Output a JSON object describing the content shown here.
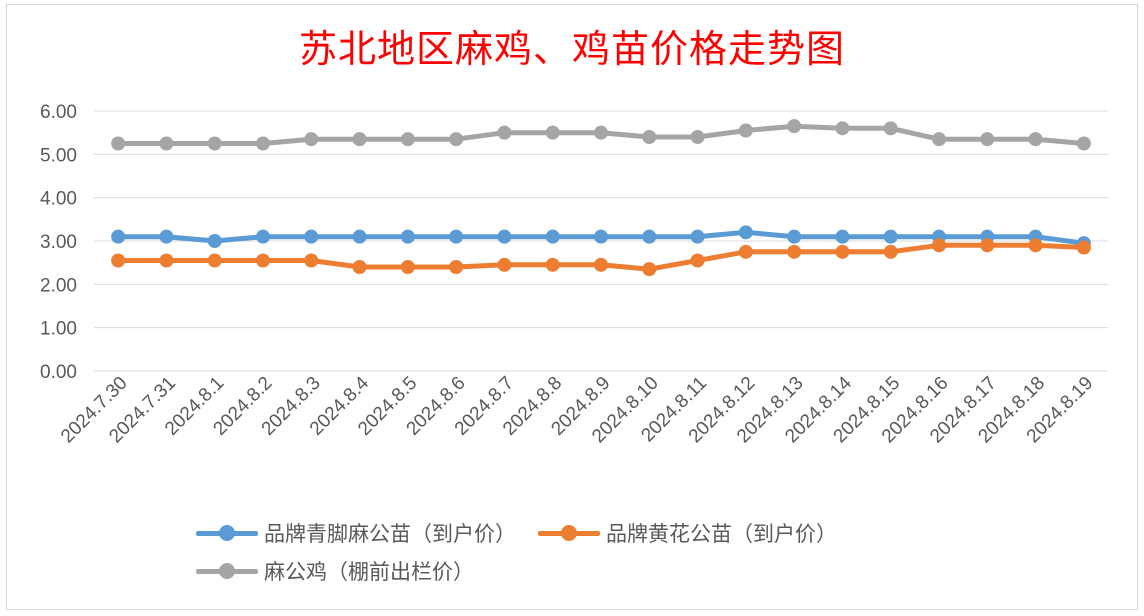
{
  "chart_data": {
    "type": "line",
    "title": "苏北地区麻鸡、鸡苗价格走势图",
    "categories": [
      "2024.7.30",
      "2024.7.31",
      "2024.8.1",
      "2024.8.2",
      "2024.8.3",
      "2024.8.4",
      "2024.8.5",
      "2024.8.6",
      "2024.8.7",
      "2024.8.8",
      "2024.8.9",
      "2024.8.10",
      "2024.8.11",
      "2024.8.12",
      "2024.8.13",
      "2024.8.14",
      "2024.8.15",
      "2024.8.16",
      "2024.8.17",
      "2024.8.18",
      "2024.8.19"
    ],
    "ylim": [
      0,
      6
    ],
    "yticks": [
      "0.00",
      "1.00",
      "2.00",
      "3.00",
      "4.00",
      "5.00",
      "6.00"
    ],
    "grid": true,
    "legend_position": "bottom",
    "series": [
      {
        "name": "品牌青脚麻公苗（到户价）",
        "color": "#5b9bd5",
        "values": [
          3.1,
          3.1,
          3.0,
          3.1,
          3.1,
          3.1,
          3.1,
          3.1,
          3.1,
          3.1,
          3.1,
          3.1,
          3.1,
          3.2,
          3.1,
          3.1,
          3.1,
          3.1,
          3.1,
          3.1,
          2.95
        ]
      },
      {
        "name": "品牌黄花公苗（到户价）",
        "color": "#ed7d31",
        "values": [
          2.55,
          2.55,
          2.55,
          2.55,
          2.55,
          2.4,
          2.4,
          2.4,
          2.45,
          2.45,
          2.45,
          2.35,
          2.55,
          2.75,
          2.75,
          2.75,
          2.75,
          2.9,
          2.9,
          2.9,
          2.85
        ]
      },
      {
        "name": "麻公鸡（棚前出栏价）",
        "color": "#a5a5a5",
        "values": [
          5.25,
          5.25,
          5.25,
          5.25,
          5.35,
          5.35,
          5.35,
          5.35,
          5.5,
          5.5,
          5.5,
          5.4,
          5.4,
          5.55,
          5.65,
          5.6,
          5.6,
          5.35,
          5.35,
          5.35,
          5.25
        ]
      }
    ]
  }
}
